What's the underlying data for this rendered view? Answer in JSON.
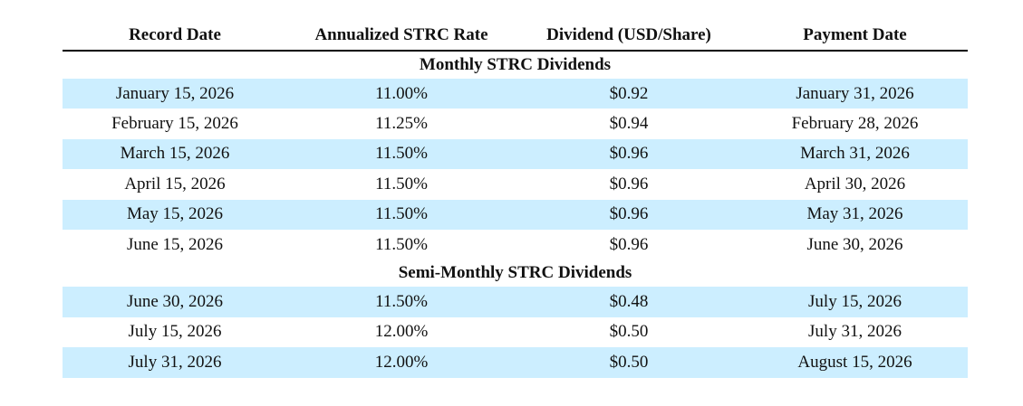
{
  "headers": {
    "record_date": "Record Date",
    "rate": "Annualized STRC Rate",
    "dividend": "Dividend (USD/Share)",
    "payment_date": "Payment Date"
  },
  "sections": [
    {
      "title": "Monthly STRC Dividends",
      "rows": [
        {
          "record_date": "January 15, 2026",
          "rate": "11.00%",
          "dividend": "$0.92",
          "payment_date": "January 31, 2026"
        },
        {
          "record_date": "February 15, 2026",
          "rate": "11.25%",
          "dividend": "$0.94",
          "payment_date": "February 28, 2026"
        },
        {
          "record_date": "March 15, 2026",
          "rate": "11.50%",
          "dividend": "$0.96",
          "payment_date": "March 31, 2026"
        },
        {
          "record_date": "April 15, 2026",
          "rate": "11.50%",
          "dividend": "$0.96",
          "payment_date": "April 30, 2026"
        },
        {
          "record_date": "May 15, 2026",
          "rate": "11.50%",
          "dividend": "$0.96",
          "payment_date": "May 31, 2026"
        },
        {
          "record_date": "June 15, 2026",
          "rate": "11.50%",
          "dividend": "$0.96",
          "payment_date": "June 30, 2026"
        }
      ]
    },
    {
      "title": "Semi-Monthly STRC Dividends",
      "rows": [
        {
          "record_date": "June 30, 2026",
          "rate": "11.50%",
          "dividend": "$0.48",
          "payment_date": "July 15, 2026"
        },
        {
          "record_date": "July 15, 2026",
          "rate": "12.00%",
          "dividend": "$0.50",
          "payment_date": "July 31, 2026"
        },
        {
          "record_date": "July 31, 2026",
          "rate": "12.00%",
          "dividend": "$0.50",
          "payment_date": "August 15, 2026"
        }
      ]
    }
  ],
  "colors": {
    "shaded_row": "#cceeff",
    "rule": "#000000"
  }
}
